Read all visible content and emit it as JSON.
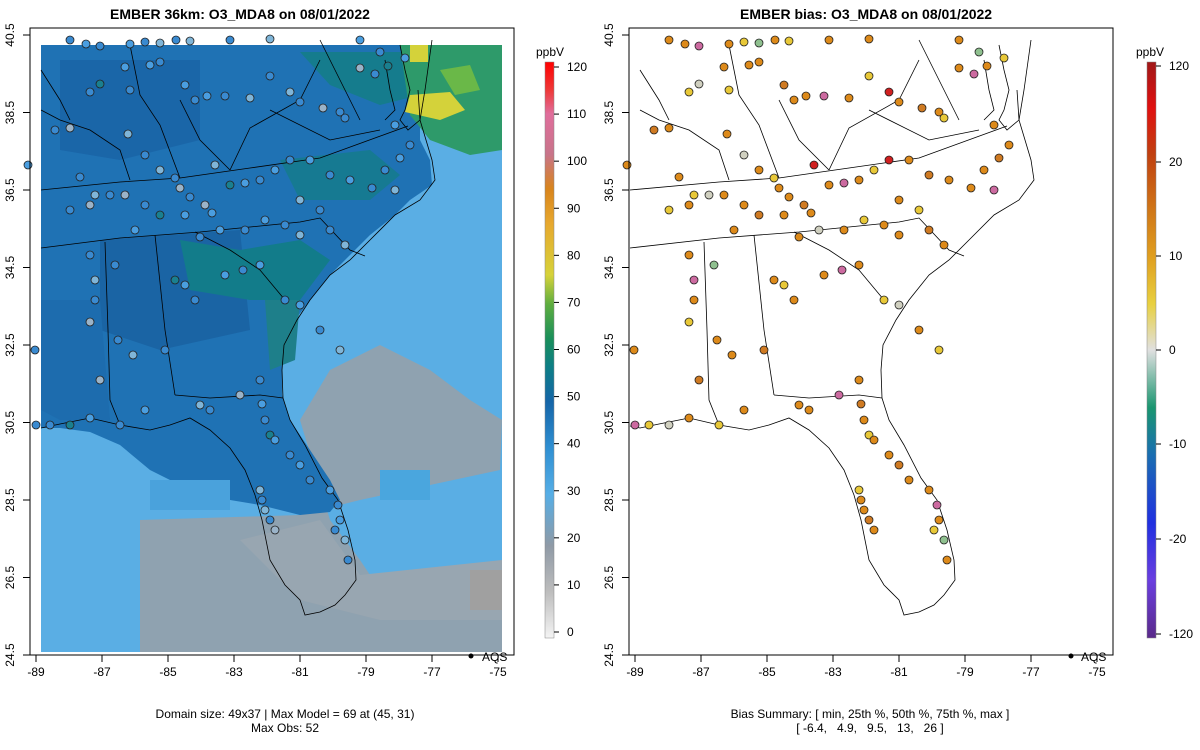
{
  "left_panel": {
    "title": "EMBER 36km: O3_MDA8 on 08/01/2022",
    "caption_line1": "Domain size: 49x37 | Max Model = 69 at (45, 31)",
    "caption_line2": "Max Obs: 52",
    "legend_label": "AQS",
    "colorbar_unit": "ppbV",
    "colorbar_ticks": [
      "0",
      "10",
      "20",
      "30",
      "40",
      "50",
      "60",
      "70",
      "80",
      "90",
      "100",
      "110",
      "120"
    ]
  },
  "right_panel": {
    "title": "EMBER bias: O3_MDA8 on 08/01/2022",
    "caption_line1": "Bias Summary: [ min, 25th %, 50th %, 75th %, max ]",
    "caption_line2": "[ -6.4,   4.9,   9.5,   13,   26 ]",
    "legend_label": "AQS",
    "colorbar_unit": "ppbV",
    "colorbar_ticks": [
      "120",
      "20",
      "10",
      "0",
      "-10",
      "-20",
      "-120"
    ]
  },
  "axes": {
    "lon_ticks": [
      "-89",
      "-87",
      "-85",
      "-83",
      "-81",
      "-79",
      "-77",
      "-75"
    ],
    "lat_ticks": [
      "24.5",
      "26.5",
      "28.5",
      "30.5",
      "32.5",
      "34.5",
      "36.5",
      "38.5",
      "40.5"
    ]
  },
  "colors": {
    "ocean_model": "#5aaee4",
    "land_model": "#1f72b4",
    "station_edge": "#222222",
    "bias_orange": "#dd8a1a",
    "bias_yellow": "#e8c838",
    "bias_pink": "#cc6aa0"
  },
  "chart_data": [
    {
      "type": "heatmap",
      "title": "EMBER 36km: O3_MDA8 on 08/01/2022",
      "x_range": [
        -89.2,
        -74.8
      ],
      "y_range": [
        24.5,
        40.7
      ],
      "colorbar": {
        "unit": "ppbV",
        "min": 0,
        "max": 120
      },
      "max_model": 69,
      "max_obs": 52,
      "domain_size": "49x37"
    },
    {
      "type": "scatter",
      "title": "EMBER bias: O3_MDA8 on 08/01/2022",
      "x_range": [
        -89.2,
        -74.8
      ],
      "y_range": [
        24.5,
        40.7
      ],
      "colorbar": {
        "unit": "ppbV",
        "min": -120,
        "max": 120
      },
      "bias_summary": {
        "min": -6.4,
        "p25": 4.9,
        "p50": 9.5,
        "p75": 13,
        "max": 26
      }
    }
  ]
}
